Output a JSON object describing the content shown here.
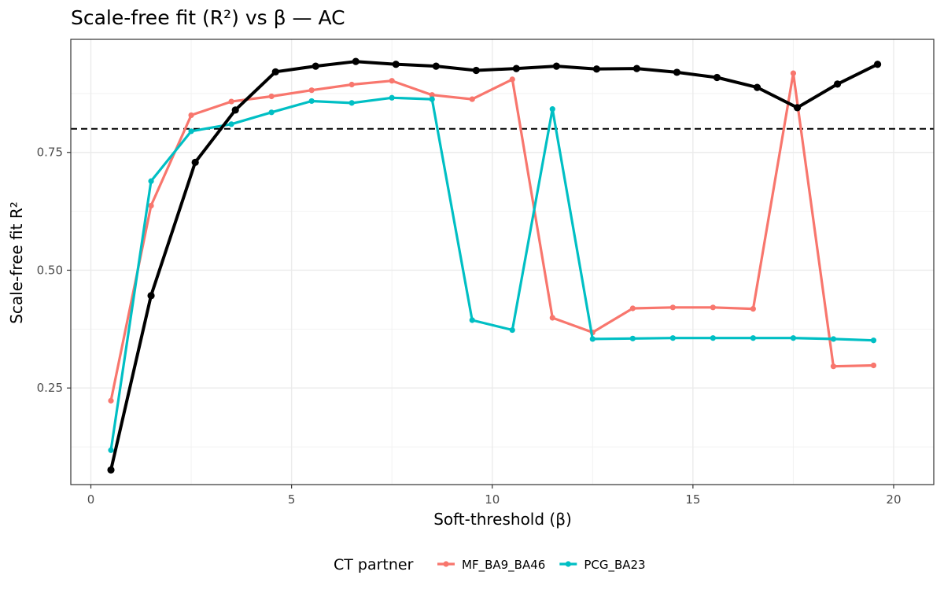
{
  "chart_data": {
    "type": "line",
    "title": "Scale-free fit (R²) vs β — AC",
    "xlabel": "Soft-threshold (β)",
    "ylabel": "Scale-free fit R²",
    "xlim": [
      -0.5,
      21.0
    ],
    "ylim": [
      0.045,
      0.99
    ],
    "x_ticks": [
      0,
      5,
      10,
      15,
      20
    ],
    "x_tick_labels": [
      "0",
      "5",
      "10",
      "15",
      "20"
    ],
    "y_ticks": [
      0.25,
      0.5,
      0.75
    ],
    "y_tick_labels": [
      "0.25",
      "0.50",
      "0.75"
    ],
    "grid": true,
    "reference_line": {
      "y": 0.8,
      "style": "dashed",
      "color": "#000000"
    },
    "legend": {
      "title": "CT partner",
      "position": "bottom",
      "entries": [
        {
          "label": "MF_BA9_BA46",
          "color": "#F8766D"
        },
        {
          "label": "PCG_BA23",
          "color": "#00BFC4"
        }
      ]
    },
    "x": [
      0.5,
      1.5,
      2.5,
      3.5,
      4.5,
      5.5,
      6.5,
      7.5,
      8.5,
      9.5,
      10.5,
      11.5,
      12.5,
      13.5,
      14.5,
      15.5,
      16.5,
      17.5,
      18.5,
      19.5
    ],
    "series": [
      {
        "name": "AC",
        "color": "#000000",
        "in_legend": false,
        "x": [
          0.5,
          1.5,
          2.6,
          3.6,
          4.6,
          5.6,
          6.6,
          7.6,
          8.6,
          9.6,
          10.6,
          11.6,
          12.6,
          13.6,
          14.6,
          15.6,
          16.6,
          17.6,
          18.6,
          19.6
        ],
        "values": [
          0.076,
          0.446,
          0.729,
          0.84,
          0.921,
          0.933,
          0.943,
          0.937,
          0.933,
          0.924,
          0.928,
          0.933,
          0.927,
          0.928,
          0.92,
          0.909,
          0.888,
          0.845,
          0.895,
          0.937
        ]
      },
      {
        "name": "MF_BA9_BA46",
        "color": "#F8766D",
        "in_legend": true,
        "x": [
          0.5,
          1.5,
          2.5,
          3.5,
          4.5,
          5.5,
          6.5,
          7.5,
          8.5,
          9.5,
          10.5,
          11.5,
          12.5,
          13.5,
          14.5,
          15.5,
          16.5,
          17.5,
          18.5,
          19.5
        ],
        "values": [
          0.223,
          0.637,
          0.829,
          0.858,
          0.869,
          0.882,
          0.894,
          0.902,
          0.872,
          0.863,
          0.905,
          0.399,
          0.368,
          0.419,
          0.421,
          0.421,
          0.418,
          0.918,
          0.296,
          0.298
        ]
      },
      {
        "name": "PCG_BA23",
        "color": "#00BFC4",
        "in_legend": true,
        "x": [
          0.5,
          1.5,
          2.5,
          3.5,
          4.5,
          5.5,
          6.5,
          7.5,
          8.5,
          9.5,
          10.5,
          11.5,
          12.5,
          13.5,
          14.5,
          15.5,
          16.5,
          17.5,
          18.5,
          19.5
        ],
        "values": [
          0.118,
          0.689,
          0.795,
          0.81,
          0.835,
          0.859,
          0.855,
          0.866,
          0.863,
          0.394,
          0.373,
          0.842,
          0.354,
          0.355,
          0.356,
          0.356,
          0.356,
          0.356,
          0.354,
          0.351
        ]
      }
    ]
  }
}
